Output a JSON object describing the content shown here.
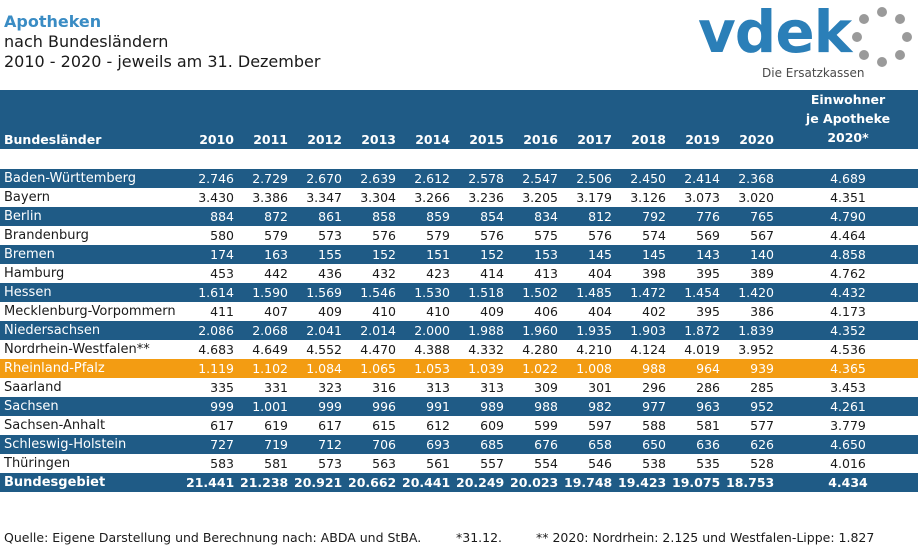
{
  "header": {
    "title": "Apotheken",
    "subtitle": "nach Bundesländern",
    "period": "2010 - 2020 - jeweils am 31. Dezember"
  },
  "logo": {
    "brand": "vdek",
    "tagline": "Die Ersatzkassen"
  },
  "chart_data": {
    "type": "table",
    "columns": [
      "Bundesländer",
      "2010",
      "2011",
      "2012",
      "2013",
      "2014",
      "2015",
      "2016",
      "2017",
      "2018",
      "2019",
      "2020",
      "Einwohner je Apotheke 2020*"
    ],
    "rows": [
      [
        "Baden-Württemberg",
        "2.746",
        "2.729",
        "2.670",
        "2.639",
        "2.612",
        "2.578",
        "2.547",
        "2.506",
        "2.450",
        "2.414",
        "2.368",
        "4.689"
      ],
      [
        "Bayern",
        "3.430",
        "3.386",
        "3.347",
        "3.304",
        "3.266",
        "3.236",
        "3.205",
        "3.179",
        "3.126",
        "3.073",
        "3.020",
        "4.351"
      ],
      [
        "Berlin",
        "884",
        "872",
        "861",
        "858",
        "859",
        "854",
        "834",
        "812",
        "792",
        "776",
        "765",
        "4.790"
      ],
      [
        "Brandenburg",
        "580",
        "579",
        "573",
        "576",
        "579",
        "576",
        "575",
        "576",
        "574",
        "569",
        "567",
        "4.464"
      ],
      [
        "Bremen",
        "174",
        "163",
        "155",
        "152",
        "151",
        "152",
        "153",
        "145",
        "145",
        "143",
        "140",
        "4.858"
      ],
      [
        "Hamburg",
        "453",
        "442",
        "436",
        "432",
        "423",
        "414",
        "413",
        "404",
        "398",
        "395",
        "389",
        "4.762"
      ],
      [
        "Hessen",
        "1.614",
        "1.590",
        "1.569",
        "1.546",
        "1.530",
        "1.518",
        "1.502",
        "1.485",
        "1.472",
        "1.454",
        "1.420",
        "4.432"
      ],
      [
        "Mecklenburg-Vorpommern",
        "411",
        "407",
        "409",
        "410",
        "410",
        "409",
        "406",
        "404",
        "402",
        "395",
        "386",
        "4.173"
      ],
      [
        "Niedersachsen",
        "2.086",
        "2.068",
        "2.041",
        "2.014",
        "2.000",
        "1.988",
        "1.960",
        "1.935",
        "1.903",
        "1.872",
        "1.839",
        "4.352"
      ],
      [
        "Nordrhein-Westfalen**",
        "4.683",
        "4.649",
        "4.552",
        "4.470",
        "4.388",
        "4.332",
        "4.280",
        "4.210",
        "4.124",
        "4.019",
        "3.952",
        "4.536"
      ],
      [
        "Rheinland-Pfalz",
        "1.119",
        "1.102",
        "1.084",
        "1.065",
        "1.053",
        "1.039",
        "1.022",
        "1.008",
        "988",
        "964",
        "939",
        "4.365"
      ],
      [
        "Saarland",
        "335",
        "331",
        "323",
        "316",
        "313",
        "313",
        "309",
        "301",
        "296",
        "286",
        "285",
        "3.453"
      ],
      [
        "Sachsen",
        "999",
        "1.001",
        "999",
        "996",
        "991",
        "989",
        "988",
        "982",
        "977",
        "963",
        "952",
        "4.261"
      ],
      [
        "Sachsen-Anhalt",
        "617",
        "619",
        "617",
        "615",
        "612",
        "609",
        "599",
        "597",
        "588",
        "581",
        "577",
        "3.779"
      ],
      [
        "Schleswig-Holstein",
        "727",
        "719",
        "712",
        "706",
        "693",
        "685",
        "676",
        "658",
        "650",
        "636",
        "626",
        "4.650"
      ],
      [
        "Thüringen",
        "583",
        "581",
        "573",
        "563",
        "561",
        "557",
        "554",
        "546",
        "538",
        "535",
        "528",
        "4.016"
      ],
      [
        "Bundesgebiet",
        "21.441",
        "21.238",
        "20.921",
        "20.662",
        "20.441",
        "20.249",
        "20.023",
        "19.748",
        "19.423",
        "19.075",
        "18.753",
        "4.434"
      ]
    ],
    "highlight_row": "Rheinland-Pfalz",
    "total_row": "Bundesgebiet"
  },
  "footer": {
    "source": "Quelle: Eigene Darstellung und Berechnung nach: ABDA und StBA.",
    "note1": "*31.12.",
    "note2": "** 2020: Nordrhein: 2.125 und Westfalen-Lippe: 1.827"
  },
  "colors": {
    "band": "#1f5b86",
    "highlight": "#f39c12",
    "title": "#3a8cc4",
    "logo": "#2b7fb8"
  }
}
